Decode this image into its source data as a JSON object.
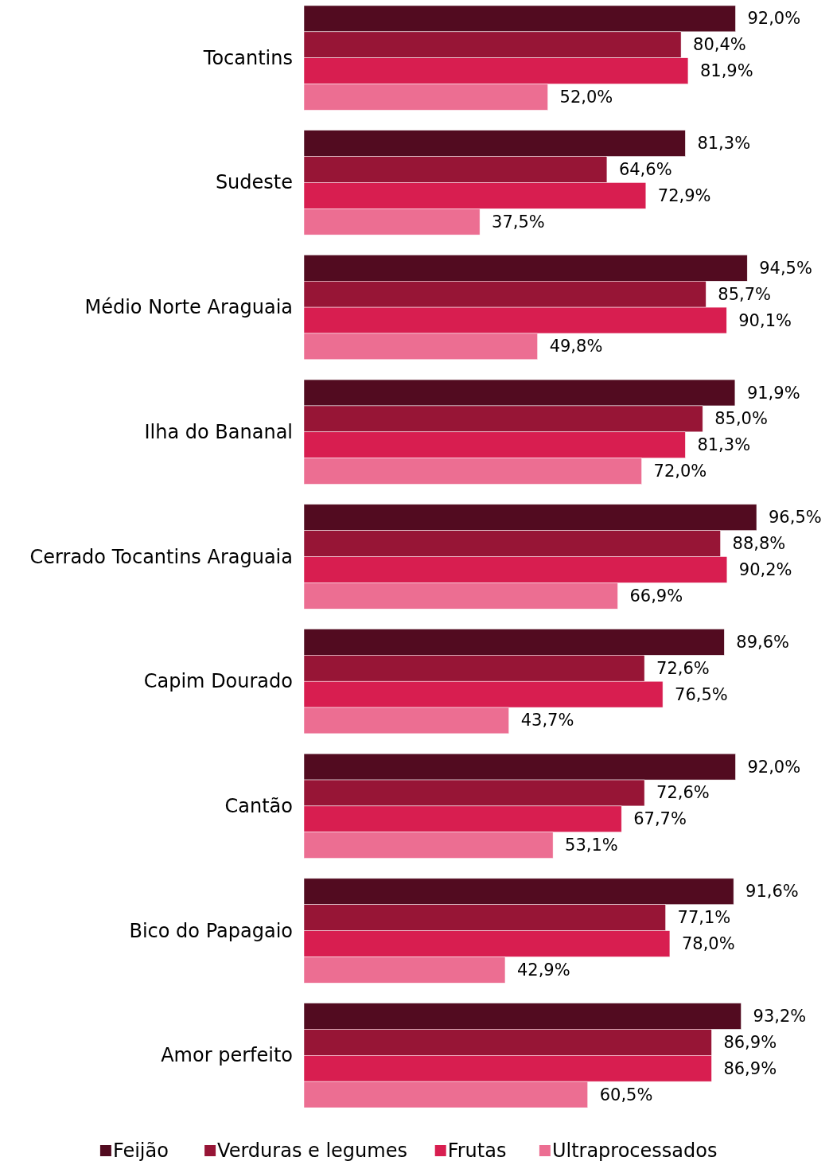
{
  "chart_data": {
    "type": "bar",
    "orientation": "horizontal",
    "tick_labels": "y",
    "legend": "bottom",
    "categories": [
      "Tocantins",
      "Sudeste",
      "Médio Norte Araguaia",
      "Ilha do Bananal",
      "Cerrado Tocantins Araguaia",
      "Capim Dourado",
      "Cantão",
      "Bico do Papagaio",
      "Amor perfeito"
    ],
    "series": [
      {
        "name": "Feijão",
        "color": "#520b20",
        "values": [
          92.0,
          81.3,
          94.5,
          91.9,
          96.5,
          89.6,
          92.0,
          91.6,
          93.2
        ],
        "value_labels": [
          "92,0%",
          "81,3%",
          "94,5%",
          "91,9%",
          "96,5%",
          "89,6%",
          "92,0%",
          "91,6%",
          "93,2%"
        ]
      },
      {
        "name": "Verduras e legumes",
        "color": "#971536",
        "values": [
          80.4,
          64.6,
          85.7,
          85.0,
          88.8,
          72.6,
          72.6,
          77.1,
          86.9
        ],
        "value_labels": [
          "80,4%",
          "64,6%",
          "85,7%",
          "85,0%",
          "88,8%",
          "72,6%",
          "72,6%",
          "77,1%",
          "86,9%"
        ]
      },
      {
        "name": "Frutas",
        "color": "#d81e50",
        "values": [
          81.9,
          72.9,
          90.1,
          81.3,
          90.2,
          76.5,
          67.7,
          78.0,
          86.9
        ],
        "value_labels": [
          "81,9%",
          "72,9%",
          "90,1%",
          "81,3%",
          "90,2%",
          "76,5%",
          "67,7%",
          "78,0%",
          "86,9%"
        ]
      },
      {
        "name": "Ultraprocessados",
        "color": "#ec6e92",
        "values": [
          52.0,
          37.5,
          49.8,
          72.0,
          66.9,
          43.7,
          53.1,
          42.9,
          60.5
        ],
        "value_labels": [
          "52,0%",
          "37,5%",
          "49,8%",
          "72,0%",
          "66,9%",
          "43,7%",
          "53,1%",
          "42,9%",
          "60,5%"
        ]
      }
    ]
  }
}
